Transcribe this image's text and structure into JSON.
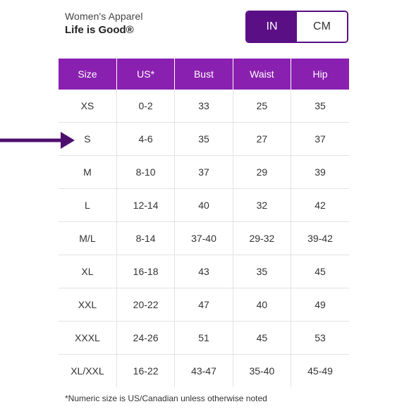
{
  "header": {
    "subtitle": "Women's Apparel",
    "title": "Life is Good®"
  },
  "unit_toggle": {
    "options": [
      {
        "label": "IN",
        "selected": true
      },
      {
        "label": "CM",
        "selected": false
      }
    ]
  },
  "size_chart": {
    "columns": [
      "Size",
      "US*",
      "Bust",
      "Waist",
      "Hip"
    ],
    "rows": [
      [
        "XS",
        "0-2",
        "33",
        "25",
        "35"
      ],
      [
        "S",
        "4-6",
        "35",
        "27",
        "37"
      ],
      [
        "M",
        "8-10",
        "37",
        "29",
        "39"
      ],
      [
        "L",
        "12-14",
        "40",
        "32",
        "42"
      ],
      [
        "M/L",
        "8-14",
        "37-40",
        "29-32",
        "39-42"
      ],
      [
        "XL",
        "16-18",
        "43",
        "35",
        "45"
      ],
      [
        "XXL",
        "20-22",
        "47",
        "40",
        "49"
      ],
      [
        "XXXL",
        "24-26",
        "51",
        "45",
        "53"
      ],
      [
        "XL/XXL",
        "16-22",
        "43-47",
        "35-40",
        "45-49"
      ]
    ]
  },
  "footnote": "*Numeric size is US/Canadian unless otherwise noted",
  "colors": {
    "header_purple": "#8a20b0",
    "toggle_purple": "#5a0f84",
    "arrow_purple": "#4d0f6e"
  },
  "icons": {
    "pointer": "arrow-right-icon"
  }
}
